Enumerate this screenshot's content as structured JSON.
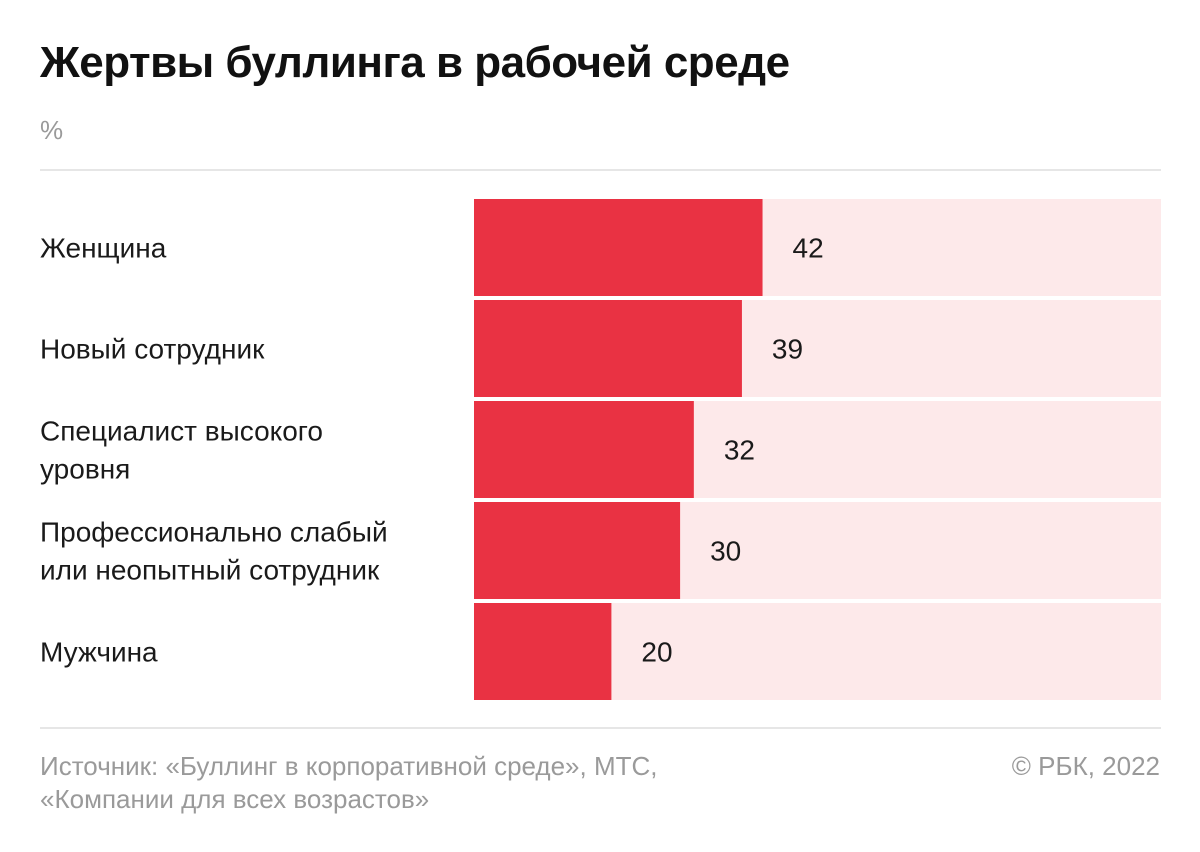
{
  "chart_data": {
    "type": "bar",
    "orientation": "horizontal",
    "title": "Жертвы буллинга в рабочей среде",
    "unit": "%",
    "categories": [
      [
        "Женщина"
      ],
      [
        "Новый сотрудник"
      ],
      [
        "Специалист высокого",
        "уровня"
      ],
      [
        "Профессионально слабый",
        "или неопытный сотрудник"
      ],
      [
        "Мужчина"
      ]
    ],
    "values": [
      42,
      39,
      32,
      30,
      20
    ],
    "xlim": [
      0,
      100
    ],
    "grid": false,
    "colors": {
      "bar": "#e93243",
      "track": "#fde9ea"
    }
  },
  "footer": {
    "source_lines": [
      "Источник: «Буллинг в корпоративной среде», МТС,",
      "«Компании для всех возрастов»"
    ],
    "copyright": "© РБК, 2022"
  }
}
